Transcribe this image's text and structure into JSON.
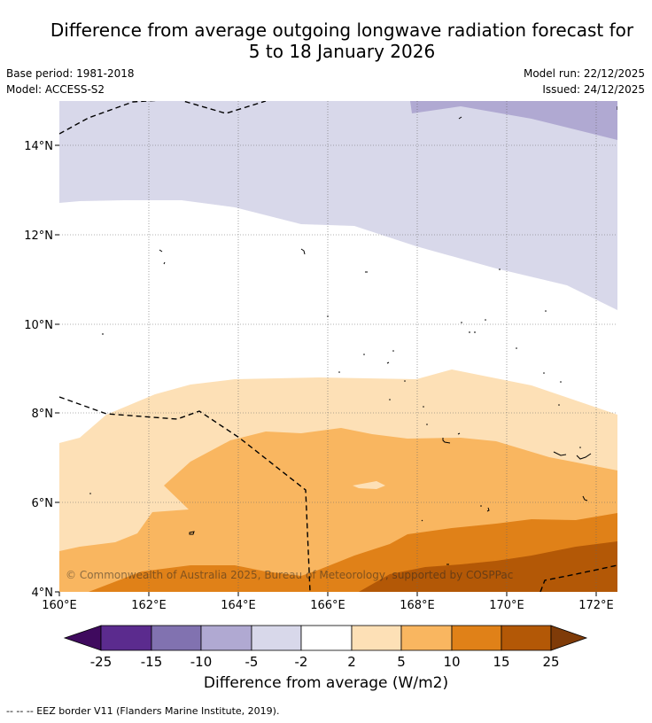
{
  "title": {
    "line1": "Difference from average outgoing longwave radiation forecast for",
    "line2": "5 to 18 January 2026"
  },
  "meta": {
    "base_period": "Base period: 1981-2018",
    "model": "Model: ACCESS-S2",
    "model_run": "Model run: 22/12/2025",
    "issued": "Issued: 24/12/2025"
  },
  "map": {
    "lat_labels": [
      "14°N",
      "12°N",
      "10°N",
      "8°N",
      "6°N",
      "4°N"
    ],
    "lon_labels": [
      "160°E",
      "162°E",
      "164°E",
      "166°E",
      "168°E",
      "170°E",
      "172°E"
    ],
    "copyright": "© Commonwealth of Australia 2025, Bureau of Meteorology, supported by COSPPac"
  },
  "colorbar": {
    "ticks": [
      "-25",
      "-15",
      "-10",
      "-5",
      "-2",
      "2",
      "5",
      "10",
      "15",
      "25"
    ],
    "colors": [
      "#5b2b8e",
      "#8172b0",
      "#b0a9d2",
      "#d8d8ea",
      "#ffffff",
      "#fde0b6",
      "#f9b660",
      "#e08118",
      "#b35806"
    ],
    "extend_low_color": "#3f0a5e",
    "extend_high_color": "#7f3b08",
    "label": "Difference from average (W/m2)"
  },
  "footer": {
    "legend_text": "--  --  -- EEZ border V11 (Flanders Marine Institute, 2019)."
  }
}
